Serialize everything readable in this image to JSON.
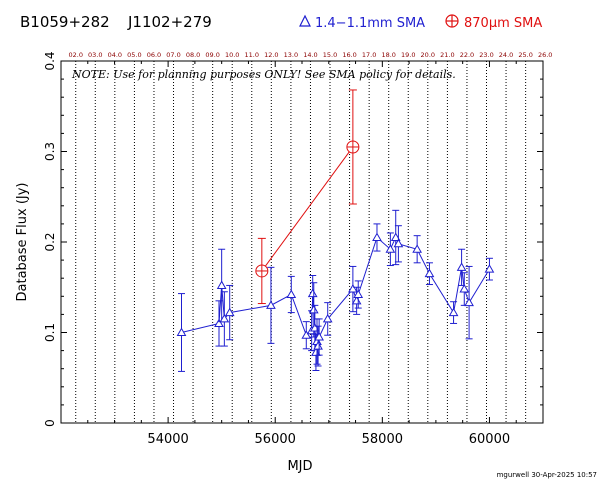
{
  "header": {
    "source_name": "B1059+282",
    "alias_name": "J1102+279",
    "legend_blue": "1.4−1.1mm SMA",
    "legend_red": "870μm SMA"
  },
  "note": "NOTE: Use for planning purposes ONLY!  See SMA policy for details.",
  "footer_stamp": "mgurwell 30-Apr-2025 10:57",
  "colors": {
    "blue": "#1f1fd0",
    "red": "#e01010",
    "axis": "#000000",
    "top_ticks": "#8b0000"
  },
  "chart_data": {
    "type": "scatter",
    "xlabel": "MJD",
    "ylabel": "Database Flux (Jy)",
    "xlim": [
      52000,
      61000
    ],
    "ylim": [
      0,
      0.4
    ],
    "xticks": [
      54000,
      56000,
      58000,
      60000
    ],
    "yticks": [
      0,
      0.1,
      0.2,
      0.3,
      0.4
    ],
    "top_labels": [
      "02.0",
      "03.0",
      "04.0",
      "05.0",
      "06.0",
      "07.0",
      "08.0",
      "09.0",
      "10.0",
      "11.0",
      "12.0",
      "13.0",
      "14.0",
      "15.0",
      "16.0",
      "17.0",
      "18.0",
      "19.0",
      "20.0",
      "21.0",
      "22.0",
      "23.0",
      "24.0",
      "25.0",
      "26.0"
    ],
    "top_label_x": [
      52275,
      52640,
      53005,
      53371,
      53736,
      54101,
      54466,
      54832,
      55197,
      55562,
      55927,
      56293,
      56658,
      57023,
      57388,
      57754,
      58119,
      58484,
      58849,
      59215,
      59580,
      59945,
      60310,
      60676,
      61041
    ],
    "series": [
      {
        "name": "1.4−1.1mm SMA",
        "points": [
          {
            "x": 54250,
            "y": 0.1,
            "err": 0.043
          },
          {
            "x": 54950,
            "y": 0.11,
            "err": 0.025
          },
          {
            "x": 55000,
            "y": 0.152,
            "err": 0.04
          },
          {
            "x": 55050,
            "y": 0.115,
            "err": 0.03
          },
          {
            "x": 55150,
            "y": 0.122,
            "err": 0.03
          },
          {
            "x": 55920,
            "y": 0.13,
            "err": 0.042
          },
          {
            "x": 56300,
            "y": 0.142,
            "err": 0.02
          },
          {
            "x": 56580,
            "y": 0.097,
            "err": 0.015
          },
          {
            "x": 56680,
            "y": 0.102,
            "err": 0.022
          },
          {
            "x": 56700,
            "y": 0.143,
            "err": 0.02
          },
          {
            "x": 56720,
            "y": 0.125,
            "err": 0.03
          },
          {
            "x": 56740,
            "y": 0.105,
            "err": 0.025
          },
          {
            "x": 56760,
            "y": 0.078,
            "err": 0.02
          },
          {
            "x": 56780,
            "y": 0.09,
            "err": 0.025
          },
          {
            "x": 56800,
            "y": 0.085,
            "err": 0.022
          },
          {
            "x": 56820,
            "y": 0.095,
            "err": 0.02
          },
          {
            "x": 56980,
            "y": 0.115,
            "err": 0.018
          },
          {
            "x": 57450,
            "y": 0.148,
            "err": 0.025
          },
          {
            "x": 57520,
            "y": 0.135,
            "err": 0.015
          },
          {
            "x": 57550,
            "y": 0.142,
            "err": 0.015
          },
          {
            "x": 57900,
            "y": 0.205,
            "err": 0.015
          },
          {
            "x": 58150,
            "y": 0.192,
            "err": 0.018
          },
          {
            "x": 58250,
            "y": 0.205,
            "err": 0.03
          },
          {
            "x": 58300,
            "y": 0.198,
            "err": 0.02
          },
          {
            "x": 58650,
            "y": 0.192,
            "err": 0.015
          },
          {
            "x": 58880,
            "y": 0.165,
            "err": 0.012
          },
          {
            "x": 59330,
            "y": 0.122,
            "err": 0.012
          },
          {
            "x": 59480,
            "y": 0.172,
            "err": 0.02
          },
          {
            "x": 59530,
            "y": 0.148,
            "err": 0.018
          },
          {
            "x": 59620,
            "y": 0.133,
            "err": 0.04
          },
          {
            "x": 60000,
            "y": 0.17,
            "err": 0.012
          }
        ]
      },
      {
        "name": "870μm SMA",
        "points": [
          {
            "x": 55750,
            "y": 0.168,
            "err": 0.036
          },
          {
            "x": 57450,
            "y": 0.305,
            "err": 0.063
          }
        ]
      }
    ]
  }
}
